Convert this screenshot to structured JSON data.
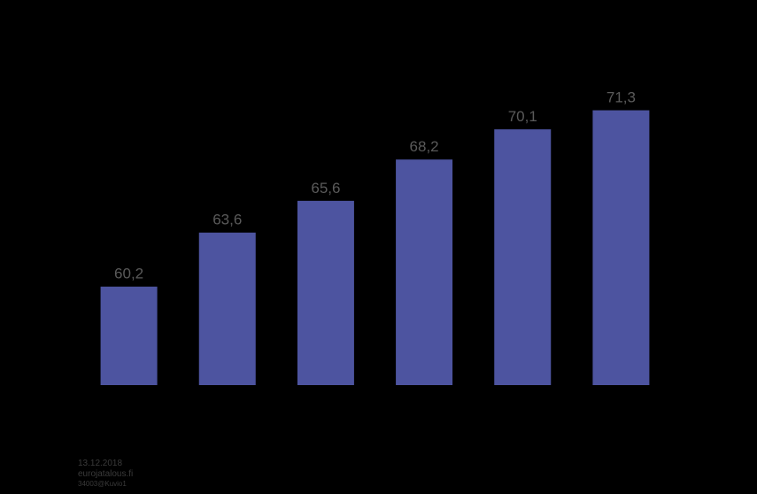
{
  "chart_data": {
    "type": "bar",
    "categories": [
      null,
      null,
      null,
      null,
      null,
      null
    ],
    "values": [
      60.2,
      63.6,
      65.6,
      68.2,
      70.1,
      71.3
    ],
    "value_labels": [
      "60,2",
      "63,6",
      "65,6",
      "68,2",
      "70,1",
      "71,3"
    ],
    "color": "#4d54a0",
    "ylim": [
      54,
      72
    ]
  },
  "footer": {
    "date": "13.12.2018",
    "site": "eurojatalous.fi",
    "code": "34003@Kuvio1"
  }
}
